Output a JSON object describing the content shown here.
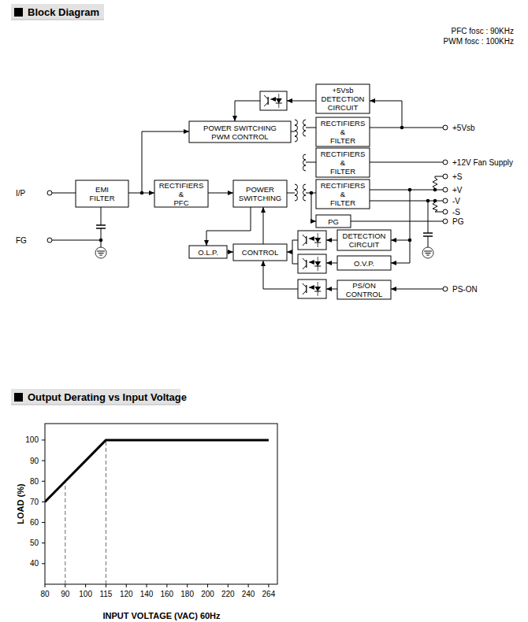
{
  "block_diagram": {
    "title": "Block Diagram",
    "notes": [
      "PFC fosc : 90KHz",
      "PWM fosc : 100KHz"
    ],
    "nodes": [
      {
        "label": [
          "+5Vsb",
          "DETECTION",
          "CIRCUIT"
        ]
      },
      {
        "label": [
          "POWER SWITCHING",
          "PWM CONTROL"
        ]
      },
      {
        "label": [
          "RECTIFIERS",
          "&",
          "FILTER"
        ]
      },
      {
        "label": [
          "RECTIFIERS",
          "&",
          "FILTER"
        ]
      },
      {
        "label": [
          "RECTIFIERS",
          "&",
          "FILTER"
        ]
      },
      {
        "label": [
          "EMI",
          "FILTER"
        ]
      },
      {
        "label": [
          "RECTIFIERS",
          "&",
          "PFC"
        ]
      },
      {
        "label": [
          "POWER",
          "SWITCHING"
        ]
      },
      {
        "label": [
          "PG"
        ]
      },
      {
        "label": [
          "O.L.P."
        ]
      },
      {
        "label": [
          "CONTROL"
        ]
      },
      {
        "label": [
          "DETECTION",
          "CIRCUIT"
        ]
      },
      {
        "label": [
          "O.V.P."
        ]
      },
      {
        "label": [
          "PS/ON",
          "CONTROL"
        ]
      }
    ],
    "terminals": [
      "I/P",
      "FG",
      "+5Vsb",
      "+12V Fan Supply",
      "+S",
      "+V",
      "-V",
      "-S",
      "PG",
      "PS-ON"
    ]
  },
  "chart_data": {
    "type": "line",
    "title": "Output Derating vs Input Voltage",
    "xlabel": "INPUT VOLTAGE (VAC) 60Hz",
    "ylabel": "LOAD (%)",
    "categories": [
      80,
      90,
      100,
      115,
      120,
      140,
      160,
      180,
      200,
      220,
      240,
      264
    ],
    "values": [
      70,
      80,
      90,
      100,
      100,
      100,
      100,
      100,
      100,
      100,
      100,
      100
    ],
    "guide_x": [
      90,
      115
    ],
    "ylim": [
      30,
      108
    ],
    "yticks": [
      40,
      50,
      60,
      70,
      80,
      90,
      100
    ],
    "color": "#000000",
    "line_style": "solid",
    "marker": "none",
    "grid": false
  }
}
